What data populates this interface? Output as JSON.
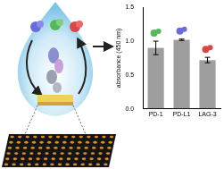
{
  "chart_data": {
    "type": "bar",
    "y_label": "absorbance (450 nm)",
    "categories": [
      "PD-1",
      "PD-L1",
      "LAG-3"
    ],
    "values": [
      0.9,
      1.02,
      0.72
    ],
    "errors": [
      0.1,
      0.01,
      0.04
    ],
    "color": "#9e9e9e",
    "ylim": [
      0,
      1.5
    ],
    "yticks": [
      {
        "value": 0,
        "label": "0.0"
      },
      {
        "value": 0.5,
        "label": "0.5"
      },
      {
        "value": 1,
        "label": "1.0"
      },
      {
        "value": 1.5,
        "label": "1.5"
      }
    ],
    "grid": false
  }
}
